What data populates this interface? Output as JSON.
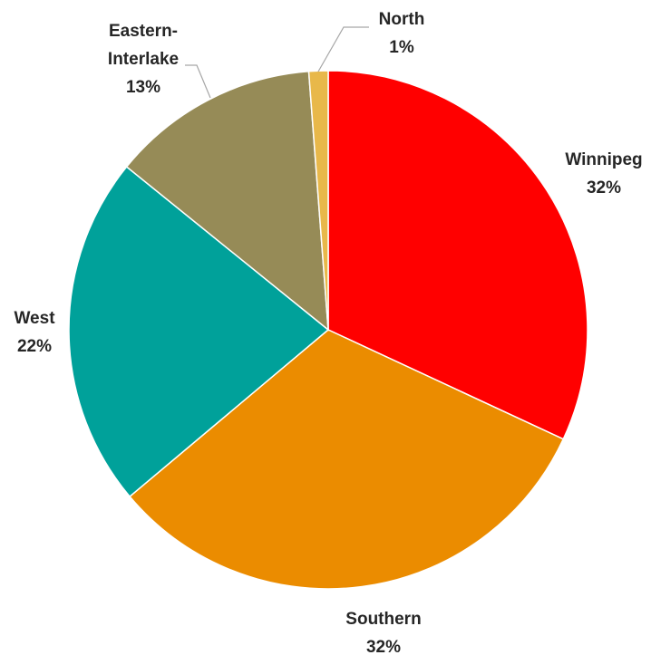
{
  "chart_data": {
    "type": "pie",
    "title": "",
    "slices": [
      {
        "name": "Winnipeg",
        "value": 32,
        "label": "32%",
        "color": "#FF0000"
      },
      {
        "name": "Southern",
        "value": 32,
        "label": "32%",
        "color": "#EB8C00"
      },
      {
        "name": "West",
        "value": 22,
        "label": "22%",
        "color": "#00A19A"
      },
      {
        "name": "Eastern-Interlake",
        "value": 13,
        "label": "13%",
        "color": "#968B57"
      },
      {
        "name": "North",
        "value": 1.2,
        "label": "1%",
        "color": "#E8B84A"
      }
    ],
    "start_angle": "12 o'clock",
    "direction": "clockwise",
    "legend": "none",
    "data_labels": "category name and percentage, outside, with leader lines"
  }
}
